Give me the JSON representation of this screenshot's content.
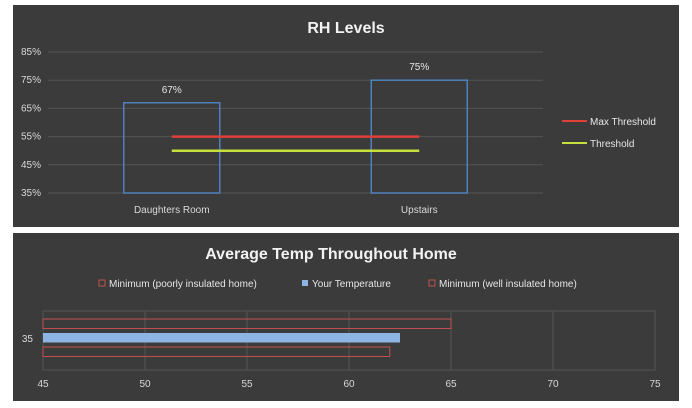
{
  "chart_data": [
    {
      "type": "bar",
      "title": "RH Levels",
      "categories": [
        "Daughters Room",
        "Upstairs"
      ],
      "series": [
        {
          "values": [
            67,
            75
          ],
          "data_labels": [
            "67%",
            "75%"
          ],
          "color": "#4f81bd"
        }
      ],
      "lines": [
        {
          "name": "Max Threshold",
          "value": 55,
          "color": "#e0403a"
        },
        {
          "name": "Threshold",
          "value": 50,
          "color": "#c5e03a"
        }
      ],
      "ylim": [
        35,
        85
      ],
      "yticks": [
        35,
        45,
        55,
        65,
        75,
        85
      ],
      "ytick_labels": [
        "35%",
        "45%",
        "55%",
        "65%",
        "75%",
        "85%"
      ],
      "grid": true,
      "legend": "right"
    },
    {
      "type": "bar",
      "orientation": "horizontal",
      "title": "Average Temp Throughout Home",
      "categories": [
        "35"
      ],
      "series": [
        {
          "name": "Minimum (poorly insulated home)",
          "values": [
            65
          ],
          "color": "#c0504d",
          "style": "outline"
        },
        {
          "name": "Your Temperature",
          "values": [
            62.5
          ],
          "color": "#8db4e2",
          "style": "filled"
        },
        {
          "name": "Minimum (well insulated home)",
          "values": [
            62
          ],
          "color": "#c0504d",
          "style": "outline"
        }
      ],
      "xlim": [
        45,
        75
      ],
      "xticks": [
        45,
        50,
        55,
        60,
        65,
        70,
        75
      ],
      "grid": true,
      "legend": "top"
    }
  ]
}
